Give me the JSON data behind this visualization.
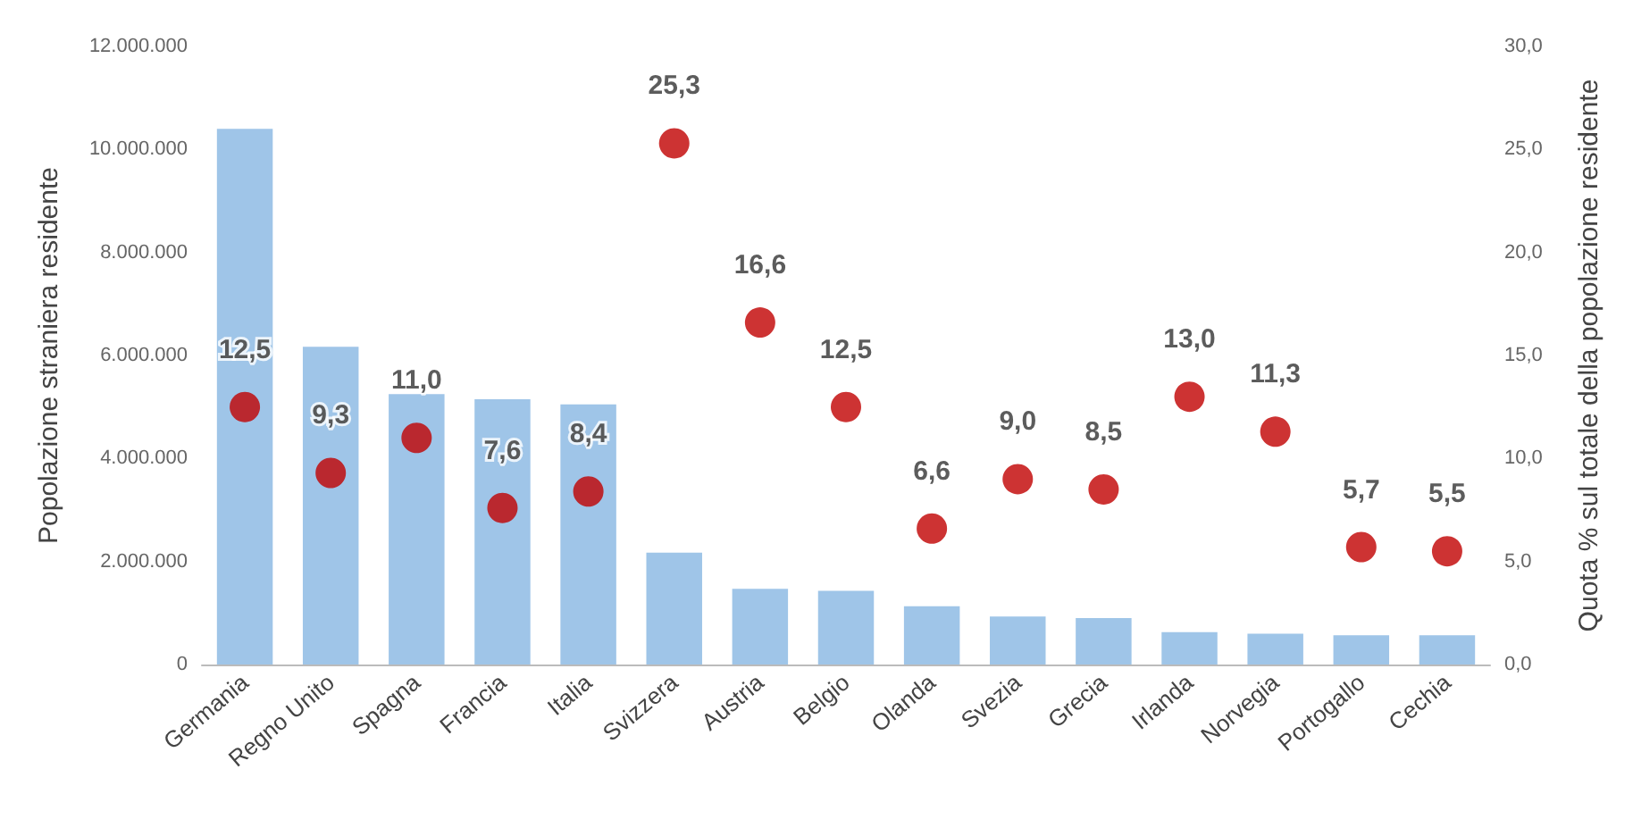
{
  "chart_data": {
    "type": "bar",
    "ylabel": "Popolazione straniera residente",
    "y2label": "Quota % sul totale della popolazione residente",
    "categories": [
      "Germania",
      "Regno Unito",
      "Spagna",
      "Francia",
      "Italia",
      "Svizzera",
      "Austria",
      "Belgio",
      "Olanda",
      "Svezia",
      "Grecia",
      "Irlanda",
      "Norvegia",
      "Portogallo",
      "Cechia"
    ],
    "series": [
      {
        "color": "#9fc5e8",
        "values": [
          10400000,
          6170000,
          5250000,
          5150000,
          5050000,
          2170000,
          1470000,
          1430000,
          1130000,
          930000,
          900000,
          630000,
          600000,
          570000,
          570000
        ]
      },
      {
        "type": "scatter",
        "axis": "y2",
        "color": "#c00000",
        "values": [
          12.5,
          9.3,
          11.0,
          7.6,
          8.4,
          25.3,
          16.6,
          12.5,
          6.6,
          9.0,
          8.5,
          13.0,
          11.3,
          5.7,
          5.5
        ],
        "value_labels": [
          "12,5",
          "9,3",
          "11,0",
          "7,6",
          "8,4",
          "25,3",
          "16,6",
          "12,5",
          "6,6",
          "9,0",
          "8,5",
          "13,0",
          "11,3",
          "5,7",
          "5,5"
        ]
      }
    ],
    "ylim": [
      0,
      12000000
    ],
    "yticks": [
      {
        "value": 0,
        "label": "0"
      },
      {
        "value": 2000000,
        "label": "2.000.000"
      },
      {
        "value": 4000000,
        "label": "4.000.000"
      },
      {
        "value": 6000000,
        "label": "6.000.000"
      },
      {
        "value": 8000000,
        "label": "8.000.000"
      },
      {
        "value": 10000000,
        "label": "10.000.000"
      },
      {
        "value": 12000000,
        "label": "12.000.000"
      }
    ],
    "y2lim": [
      0,
      30
    ],
    "y2ticks": [
      {
        "value": 0,
        "label": "0,0"
      },
      {
        "value": 5,
        "label": "5,0"
      },
      {
        "value": 10,
        "label": "10,0"
      },
      {
        "value": 15,
        "label": "15,0"
      },
      {
        "value": 20,
        "label": "20,0"
      },
      {
        "value": 25,
        "label": "25,0"
      },
      {
        "value": 30,
        "label": "30,0"
      }
    ],
    "marker": "circle"
  }
}
